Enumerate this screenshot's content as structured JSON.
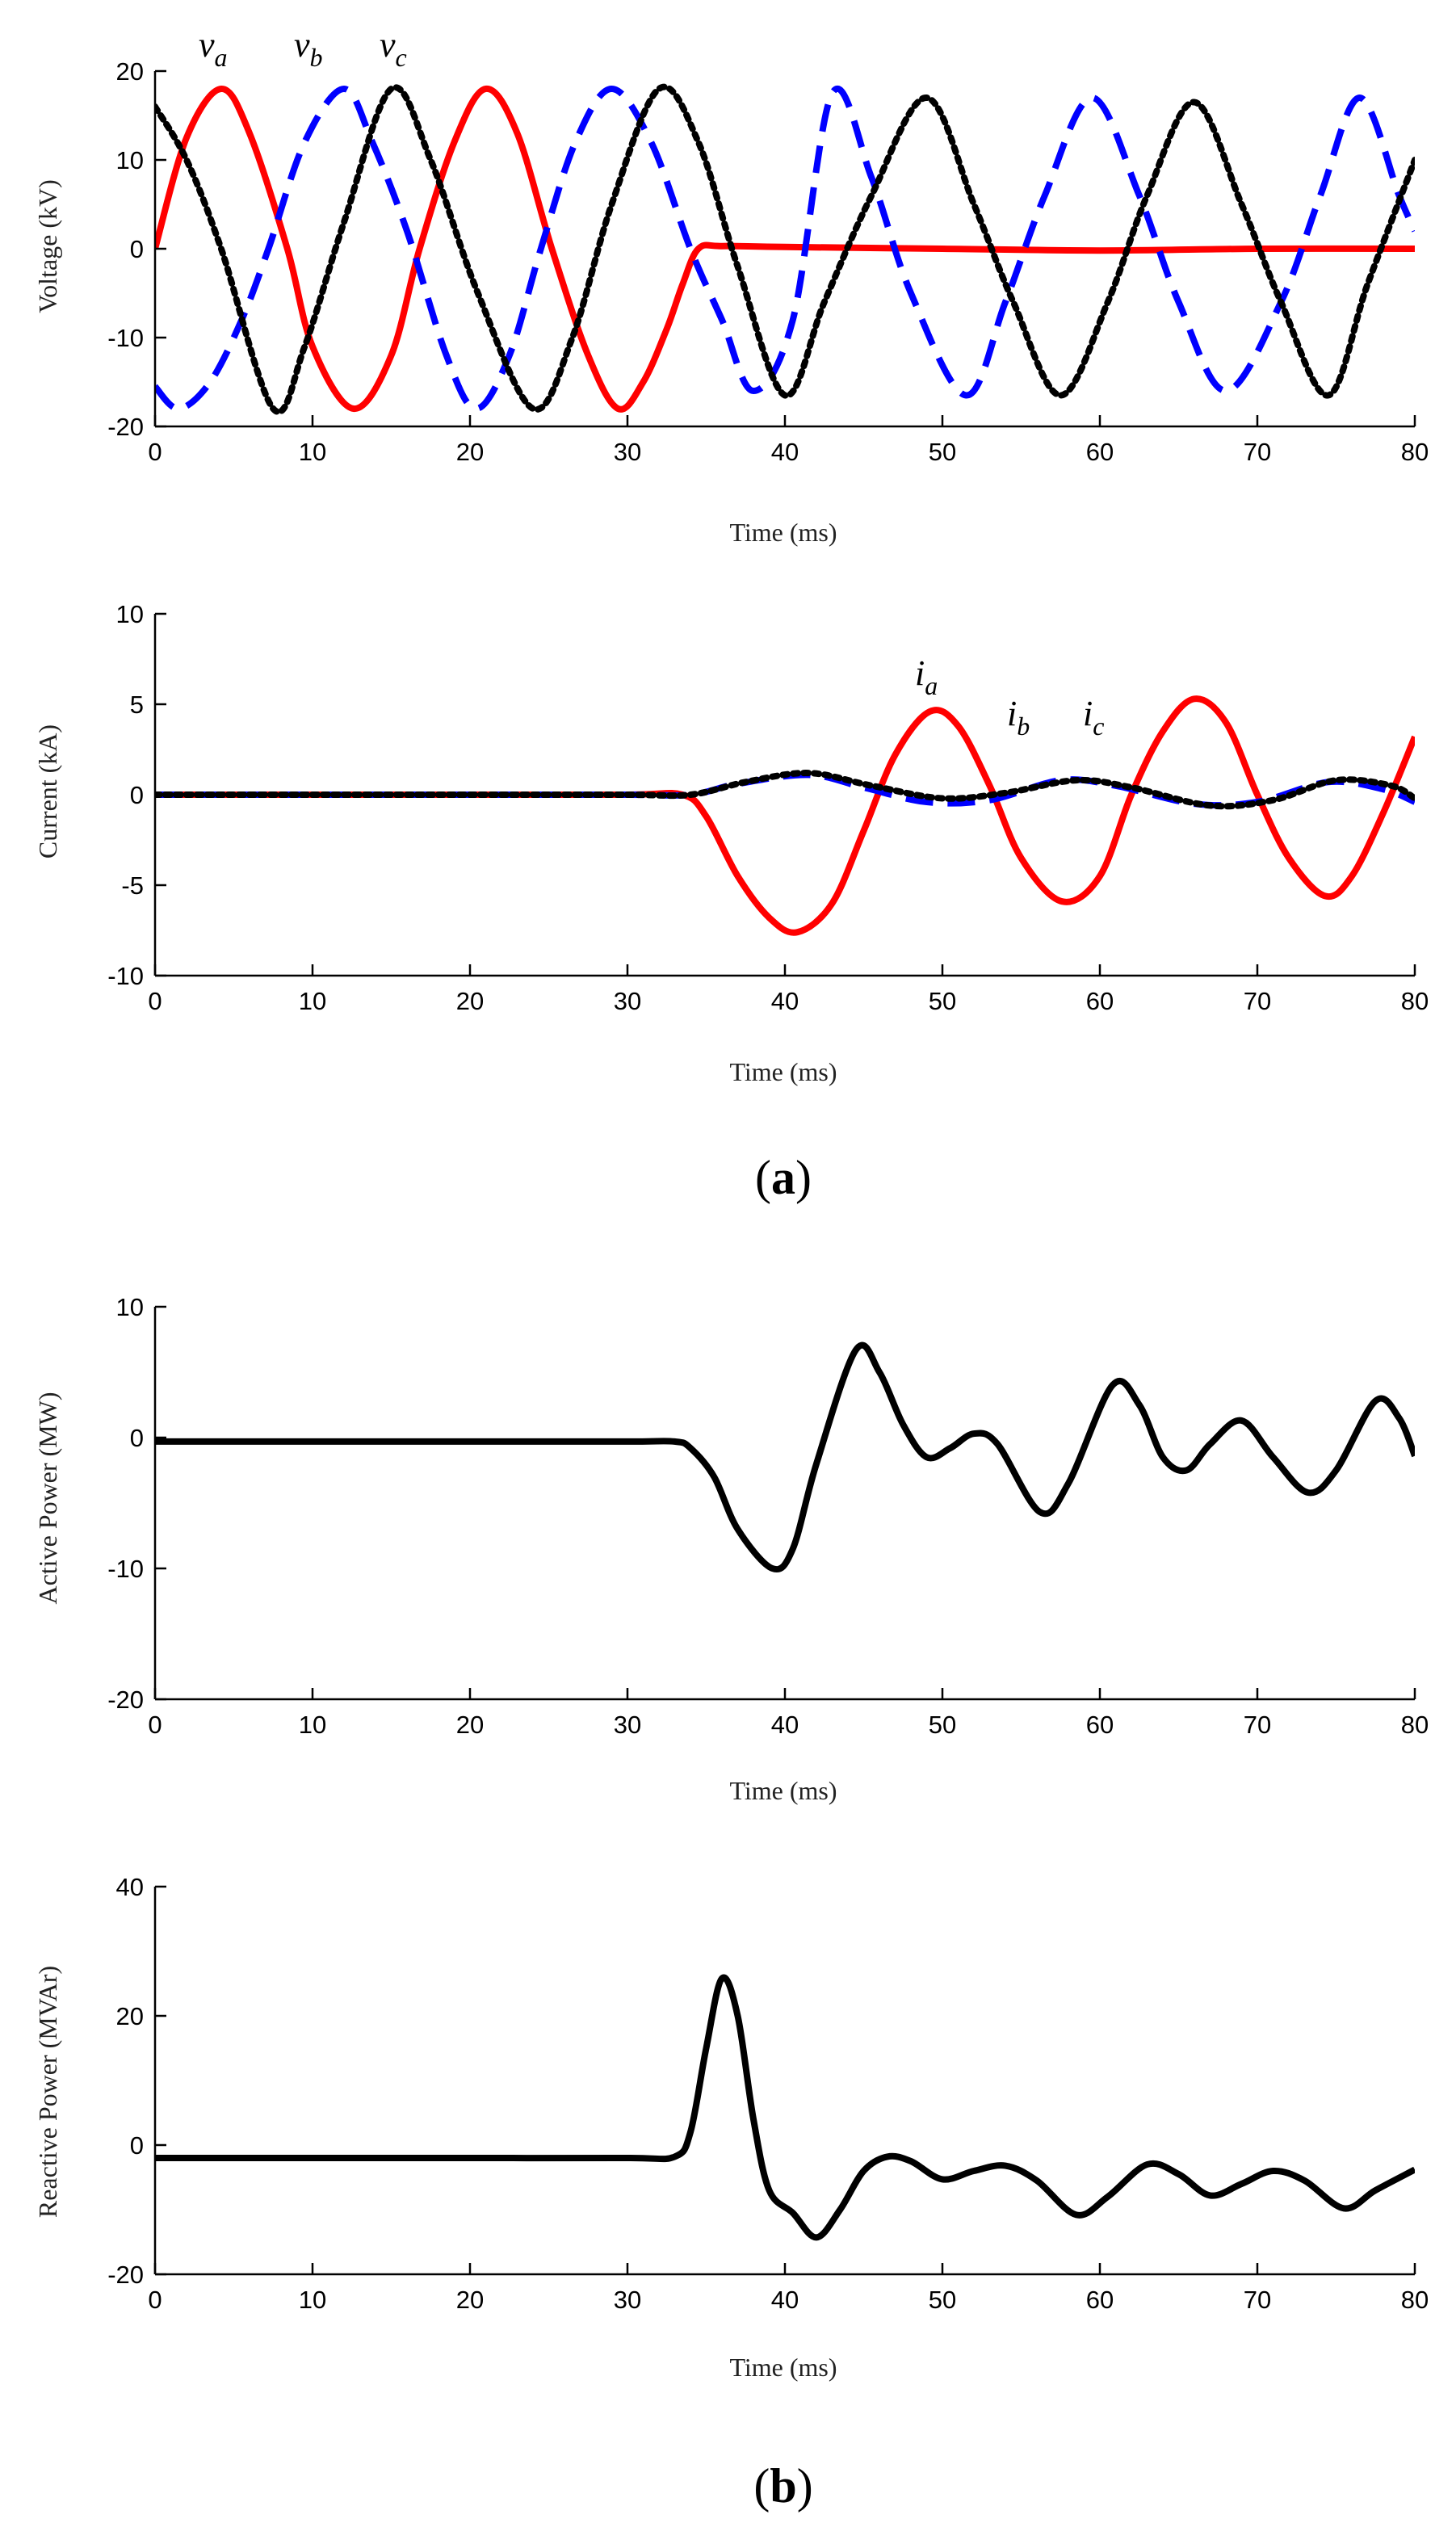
{
  "chart_data": [
    {
      "type": "line",
      "xlabel": "Time (ms)",
      "ylabel": "Voltage (kV)",
      "xlim": [
        0,
        80
      ],
      "ylim": [
        -20,
        20
      ],
      "xticks": [
        "0",
        "10",
        "20",
        "30",
        "40",
        "50",
        "60",
        "70",
        "80"
      ],
      "yticks": [
        "20",
        "10",
        "0",
        "-10",
        "-20"
      ],
      "series": [
        {
          "name": "v_a",
          "letter": "v",
          "sub": "a",
          "color": "#ff0000",
          "style": "solid",
          "x": [
            0,
            2,
            4.2,
            6,
            8.4,
            10,
            12.6,
            15,
            16.8,
            19,
            21,
            23,
            25.2,
            27.5,
            29.4,
            31,
            32.5,
            33.5,
            34.5,
            36,
            40,
            50,
            60,
            70,
            80
          ],
          "y": [
            0,
            12.5,
            18,
            13,
            0,
            -11,
            -18,
            -12,
            0,
            12,
            18,
            13,
            0,
            -12,
            -18,
            -15,
            -9,
            -4,
            0,
            0.3,
            0.2,
            0,
            -0.2,
            0,
            0
          ]
        },
        {
          "name": "v_b",
          "letter": "v",
          "sub": "b",
          "color": "#0000ff",
          "style": "dashed",
          "x": [
            0,
            1.5,
            3.5,
            5.5,
            7.2,
            9.5,
            12,
            13.8,
            16,
            18.5,
            20.4,
            22.5,
            24.5,
            26.7,
            29,
            31.5,
            34,
            36,
            38,
            40.5,
            43,
            45.5,
            48,
            51.5,
            54,
            56.5,
            59.5,
            62.5,
            65,
            68,
            71.5,
            74,
            76.5,
            79,
            80
          ],
          "y": [
            -15.5,
            -18,
            -15,
            -8,
            0,
            12,
            18,
            12,
            2,
            -12,
            -18,
            -12,
            0,
            12,
            18,
            12,
            0,
            -8,
            -16,
            -8,
            17.5,
            8,
            -5,
            -16.5,
            -6,
            6,
            17,
            6,
            -6,
            -16,
            -6,
            6,
            17,
            6,
            2
          ]
        },
        {
          "name": "v_c",
          "letter": "v",
          "sub": "c",
          "color": "#000000",
          "style": "dotted",
          "x": [
            0,
            2,
            4.2,
            7.5,
            9.5,
            12,
            15,
            17.5,
            20.5,
            24,
            26.5,
            29,
            32,
            34.5,
            37,
            40,
            42.5,
            45.5,
            49,
            52,
            54.5,
            57.5,
            60.5,
            63,
            66,
            69,
            71.5,
            74.5,
            77,
            80
          ],
          "y": [
            16,
            10,
            0,
            -18,
            -11,
            3,
            18,
            10,
            -5,
            -18,
            -10,
            5,
            18,
            12,
            -2,
            -16.5,
            -6,
            6,
            17,
            5,
            -6,
            -16.5,
            -6,
            6,
            16.5,
            5,
            -6,
            -16.5,
            -4,
            10
          ]
        }
      ]
    },
    {
      "type": "line",
      "xlabel": "Time (ms)",
      "ylabel": "Current (kA)",
      "xlim": [
        0,
        80
      ],
      "ylim": [
        -10,
        10
      ],
      "xticks": [
        "0",
        "10",
        "20",
        "30",
        "40",
        "50",
        "60",
        "70",
        "80"
      ],
      "yticks": [
        "10",
        "5",
        "0",
        "-5",
        "-10"
      ],
      "series": [
        {
          "name": "i_a",
          "letter": "i",
          "sub": "a",
          "color": "#ff0000",
          "style": "solid",
          "x": [
            0,
            10,
            20,
            30,
            33.5,
            35,
            37,
            39,
            40.8,
            43,
            45,
            47,
            49.2,
            51,
            53,
            55,
            57.6,
            60,
            62,
            64,
            66,
            68,
            70,
            72,
            74.3,
            76,
            78,
            80
          ],
          "y": [
            0,
            0,
            0,
            0,
            0,
            -1.2,
            -4.5,
            -6.8,
            -7.6,
            -6,
            -2,
            2.2,
            4.6,
            3.8,
            0.5,
            -3.5,
            -5.9,
            -4.5,
            0,
            3.5,
            5.3,
            4,
            0,
            -3.5,
            -5.6,
            -4.5,
            -1,
            3.2
          ]
        },
        {
          "name": "i_b",
          "letter": "i",
          "sub": "b",
          "color": "#0000ff",
          "style": "dashed",
          "x": [
            0,
            10,
            20,
            30,
            34,
            37,
            41.5,
            45,
            49,
            53,
            57.5,
            61,
            66,
            70,
            74.5,
            78,
            80
          ],
          "y": [
            0,
            0,
            0,
            0,
            0,
            0.6,
            1.1,
            0.4,
            -0.4,
            -0.3,
            0.8,
            0.5,
            -0.5,
            -0.4,
            0.7,
            0.3,
            -0.4
          ]
        },
        {
          "name": "i_c",
          "letter": "i",
          "sub": "c",
          "color": "#000000",
          "style": "dotted",
          "x": [
            0,
            10,
            20,
            30,
            34,
            37.5,
            41.5,
            45.5,
            50,
            54,
            58.5,
            62,
            67,
            71,
            75,
            78.5,
            80
          ],
          "y": [
            0,
            0,
            0,
            0,
            0,
            0.7,
            1.2,
            0.5,
            -0.2,
            0.1,
            0.8,
            0.4,
            -0.6,
            -0.3,
            0.8,
            0.5,
            -0.2
          ]
        }
      ]
    },
    {
      "type": "line",
      "xlabel": "Time (ms)",
      "ylabel": "Active Power (MW)",
      "xlim": [
        0,
        80
      ],
      "ylim": [
        -20,
        10
      ],
      "xticks": [
        "0",
        "10",
        "20",
        "30",
        "40",
        "50",
        "60",
        "70",
        "80"
      ],
      "yticks": [
        "10",
        "0",
        "-10",
        "-20"
      ],
      "series": [
        {
          "name": "P",
          "color": "#000000",
          "style": "solid",
          "x": [
            0,
            10,
            20,
            30,
            33,
            34,
            35.5,
            37,
            39.2,
            40.5,
            42,
            44.5,
            46,
            47.5,
            49,
            50.5,
            52,
            53.5,
            56.2,
            58,
            60.8,
            62.5,
            64,
            65.5,
            67,
            69,
            71,
            73.2,
            75,
            77.5,
            79,
            80
          ],
          "y": [
            -0.3,
            -0.3,
            -0.3,
            -0.3,
            -0.3,
            -0.8,
            -3,
            -7,
            -10,
            -8.5,
            -2,
            6.7,
            5,
            1,
            -1.5,
            -0.8,
            0.3,
            -0.5,
            -5.7,
            -3.5,
            4,
            2.5,
            -1.5,
            -2.5,
            -0.5,
            1.3,
            -1.5,
            -4.2,
            -2.5,
            2.8,
            1.5,
            -1.4
          ]
        }
      ]
    },
    {
      "type": "line",
      "xlabel": "Time (ms)",
      "ylabel": "Reactive Power (MVAr)",
      "xlim": [
        0,
        80
      ],
      "ylim": [
        -20,
        40
      ],
      "xticks": [
        "0",
        "10",
        "20",
        "30",
        "40",
        "50",
        "60",
        "70",
        "80"
      ],
      "yticks": [
        "40",
        "20",
        "0",
        "-20"
      ],
      "series": [
        {
          "name": "Q",
          "color": "#000000",
          "style": "solid",
          "x": [
            0,
            10,
            20,
            30,
            33,
            34,
            35,
            36,
            37,
            38,
            39,
            40.5,
            42,
            43.5,
            45,
            46.5,
            48,
            50,
            52,
            54,
            56,
            58.5,
            60.5,
            63,
            65,
            67,
            69,
            71,
            73,
            75.5,
            77.5,
            80
          ],
          "y": [
            -2,
            -2,
            -2,
            -2,
            -1.8,
            2,
            15,
            25.8,
            20,
            4,
            -7,
            -10.5,
            -14.3,
            -10,
            -4,
            -1.8,
            -2.5,
            -5.3,
            -4,
            -3.2,
            -5.5,
            -10.8,
            -8,
            -3,
            -4.5,
            -7.8,
            -6,
            -4,
            -5.5,
            -9.8,
            -7,
            -3.8
          ]
        }
      ]
    }
  ],
  "panel_labels": [
    {
      "open": "(",
      "letter": "a",
      "close": ")"
    },
    {
      "open": "(",
      "letter": "b",
      "close": ")"
    }
  ]
}
